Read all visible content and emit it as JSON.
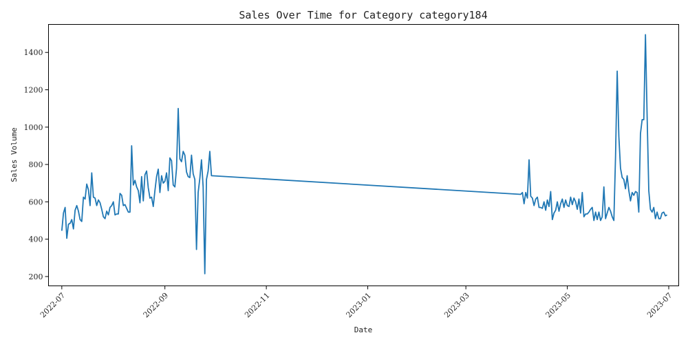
{
  "chart_data": {
    "type": "line",
    "title": "Sales Over Time for Category category184",
    "xlabel": "Date",
    "ylabel": "Sales Volume",
    "x_axis_kind": "date",
    "xlim": [
      "2022-06-23",
      "2023-07-07"
    ],
    "ylim": [
      150,
      1550
    ],
    "x_ticks": [
      "2022-07",
      "2022-09",
      "2022-11",
      "2023-01",
      "2023-03",
      "2023-05",
      "2023-07"
    ],
    "y_ticks": [
      200,
      400,
      600,
      800,
      1000,
      1200,
      1400
    ],
    "grid": false,
    "legend": "none",
    "color": "#1f77b4",
    "series": [
      {
        "x": [
          "2022-07-01",
          "2022-07-02",
          "2022-07-03",
          "2022-07-04",
          "2022-07-05",
          "2022-07-06",
          "2022-07-07",
          "2022-07-08",
          "2022-07-09",
          "2022-07-10",
          "2022-07-11",
          "2022-07-12",
          "2022-07-13",
          "2022-07-14",
          "2022-07-15",
          "2022-07-16",
          "2022-07-17",
          "2022-07-18",
          "2022-07-19",
          "2022-07-20",
          "2022-07-21",
          "2022-07-22",
          "2022-07-23",
          "2022-07-24",
          "2022-07-25",
          "2022-07-26",
          "2022-07-27",
          "2022-07-28",
          "2022-07-29",
          "2022-07-30",
          "2022-07-31",
          "2022-08-01",
          "2022-08-02",
          "2022-08-03",
          "2022-08-04",
          "2022-08-05",
          "2022-08-06",
          "2022-08-07",
          "2022-08-08",
          "2022-08-09",
          "2022-08-10",
          "2022-08-11",
          "2022-08-12",
          "2022-08-13",
          "2022-08-14",
          "2022-08-15",
          "2022-08-16",
          "2022-08-17",
          "2022-08-18",
          "2022-08-19",
          "2022-08-20",
          "2022-08-21",
          "2022-08-22",
          "2022-08-23",
          "2022-08-24",
          "2022-08-25",
          "2022-08-26",
          "2022-08-27",
          "2022-08-28",
          "2022-08-29",
          "2022-08-30",
          "2022-08-31",
          "2022-09-01",
          "2022-09-02",
          "2022-09-03",
          "2022-09-04",
          "2022-09-05",
          "2022-09-06",
          "2022-09-07",
          "2022-09-08",
          "2022-09-09",
          "2022-09-10",
          "2022-09-11",
          "2022-09-12",
          "2022-09-13",
          "2022-09-14",
          "2022-09-15",
          "2022-09-16",
          "2022-09-17",
          "2022-09-18",
          "2022-09-19",
          "2022-09-20",
          "2022-09-21",
          "2022-09-22",
          "2022-09-23",
          "2022-09-24",
          "2022-09-25",
          "2022-09-26",
          "2022-09-27",
          "2022-09-28",
          "2022-09-29",
          "2023-04-03",
          "2023-04-04",
          "2023-04-05",
          "2023-04-06",
          "2023-04-07",
          "2023-04-08",
          "2023-04-09",
          "2023-04-10",
          "2023-04-11",
          "2023-04-12",
          "2023-04-13",
          "2023-04-14",
          "2023-04-15",
          "2023-04-16",
          "2023-04-17",
          "2023-04-18",
          "2023-04-19",
          "2023-04-20",
          "2023-04-21",
          "2023-04-22",
          "2023-04-23",
          "2023-04-24",
          "2023-04-25",
          "2023-04-26",
          "2023-04-27",
          "2023-04-28",
          "2023-04-29",
          "2023-04-30",
          "2023-05-01",
          "2023-05-02",
          "2023-05-03",
          "2023-05-04",
          "2023-05-05",
          "2023-05-06",
          "2023-05-07",
          "2023-05-08",
          "2023-05-09",
          "2023-05-10",
          "2023-05-11",
          "2023-05-12",
          "2023-05-13",
          "2023-05-14",
          "2023-05-15",
          "2023-05-16",
          "2023-05-17",
          "2023-05-18",
          "2023-05-19",
          "2023-05-20",
          "2023-05-21",
          "2023-05-22",
          "2023-05-23",
          "2023-05-24",
          "2023-05-25",
          "2023-05-26",
          "2023-05-27",
          "2023-05-28",
          "2023-05-29",
          "2023-05-30",
          "2023-05-31",
          "2023-06-01",
          "2023-06-02",
          "2023-06-03",
          "2023-06-04",
          "2023-06-05",
          "2023-06-06",
          "2023-06-07",
          "2023-06-08",
          "2023-06-09",
          "2023-06-10",
          "2023-06-11",
          "2023-06-12",
          "2023-06-13",
          "2023-06-14",
          "2023-06-15",
          "2023-06-16",
          "2023-06-17",
          "2023-06-18",
          "2023-06-19",
          "2023-06-20",
          "2023-06-21",
          "2023-06-22",
          "2023-06-23",
          "2023-06-24",
          "2023-06-25",
          "2023-06-26",
          "2023-06-27",
          "2023-06-28",
          "2023-06-29",
          "2023-06-30"
        ],
        "y": [
          445,
          540,
          570,
          405,
          480,
          485,
          505,
          455,
          555,
          580,
          550,
          505,
          495,
          625,
          615,
          695,
          665,
          580,
          755,
          625,
          620,
          580,
          610,
          595,
          560,
          520,
          510,
          550,
          530,
          570,
          580,
          600,
          530,
          535,
          535,
          645,
          635,
          580,
          585,
          565,
          545,
          545,
          900,
          690,
          715,
          680,
          660,
          595,
          735,
          605,
          745,
          765,
          675,
          620,
          625,
          575,
          660,
          735,
          775,
          650,
          740,
          700,
          710,
          755,
          660,
          835,
          820,
          690,
          680,
          780,
          1100,
          830,
          815,
          870,
          850,
          760,
          735,
          730,
          850,
          750,
          720,
          345,
          650,
          725,
          825,
          680,
          215,
          720,
          765,
          870,
          740,
          640,
          650,
          590,
          650,
          620,
          825,
          630,
          620,
          580,
          615,
          625,
          570,
          570,
          565,
          600,
          555,
          610,
          575,
          655,
          505,
          540,
          555,
          600,
          550,
          590,
          615,
          570,
          610,
          580,
          575,
          625,
          585,
          620,
          600,
          560,
          615,
          540,
          650,
          520,
          535,
          535,
          545,
          560,
          570,
          500,
          545,
          505,
          545,
          500,
          520,
          680,
          510,
          540,
          570,
          550,
          520,
          500,
          840,
          1300,
          950,
          780,
          730,
          720,
          670,
          740,
          660,
          605,
          650,
          635,
          655,
          650,
          545,
          965,
          1040,
          1040,
          1495,
          1060,
          660,
          560,
          545,
          570,
          510,
          545,
          510,
          510,
          540,
          545,
          525,
          530
        ]
      }
    ]
  }
}
